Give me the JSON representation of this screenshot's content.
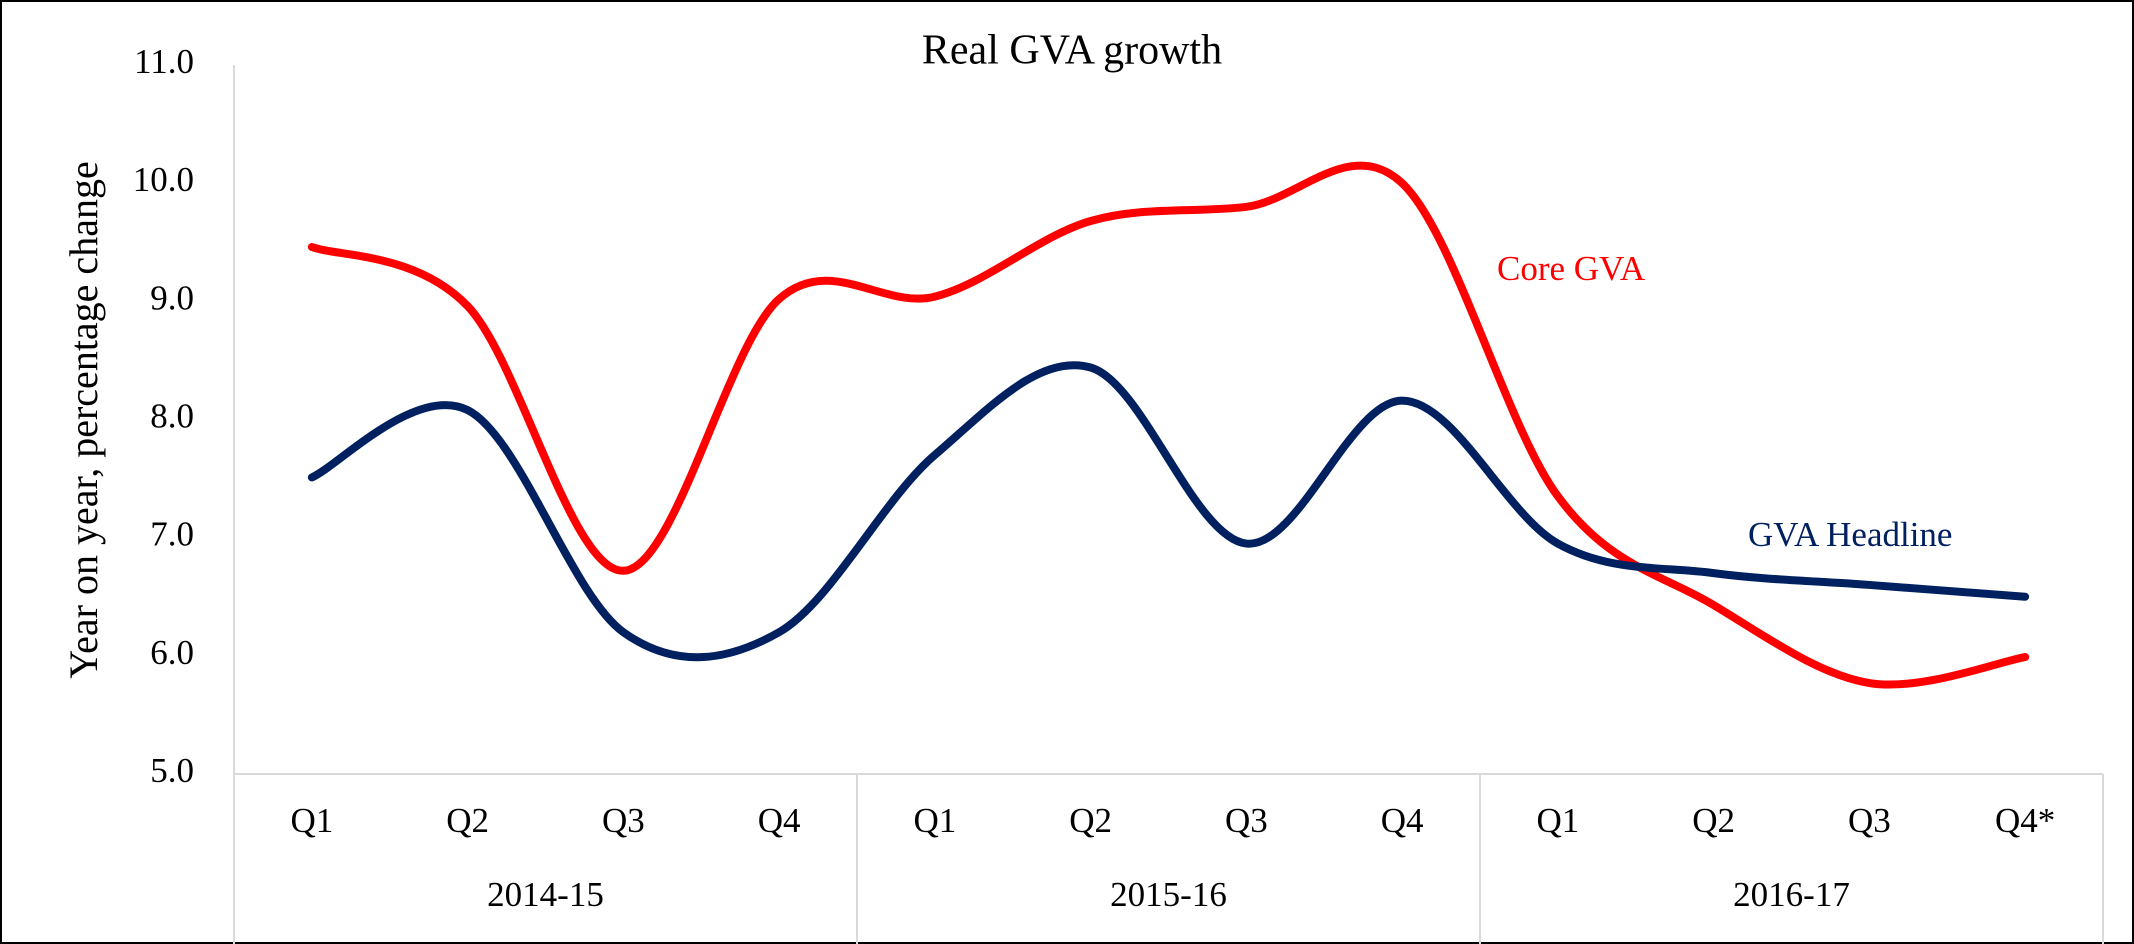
{
  "chart_data": {
    "type": "line",
    "title": "Real GVA growth",
    "y_label": "Year on year, percentage change",
    "categories": [
      "Q1",
      "Q2",
      "Q3",
      "Q4",
      "Q1",
      "Q2",
      "Q3",
      "Q4",
      "Q1",
      "Q2",
      "Q3",
      "Q4*"
    ],
    "groups": [
      "2014-15",
      "2015-16",
      "2016-17"
    ],
    "series": [
      {
        "name": "Core GVA",
        "color": "#ff0000",
        "values": [
          9.46,
          8.96,
          6.72,
          9.02,
          9.04,
          9.68,
          9.8,
          10.0,
          7.35,
          6.43,
          5.77,
          5.99
        ]
      },
      {
        "name": "GVA Headline",
        "color": "#002060",
        "values": [
          7.51,
          8.08,
          6.2,
          6.2,
          7.7,
          8.44,
          6.95,
          8.16,
          6.95,
          6.7,
          6.6,
          6.5
        ]
      }
    ],
    "ylim": [
      5,
      11
    ],
    "yticks": [
      {
        "value": 5,
        "label": "5.0"
      },
      {
        "value": 6,
        "label": "6.0"
      },
      {
        "value": 7,
        "label": "7.0"
      },
      {
        "value": 8,
        "label": "8.0"
      },
      {
        "value": 9,
        "label": "9.0"
      },
      {
        "value": 10,
        "label": "10.0"
      },
      {
        "value": 11,
        "label": "11.0"
      }
    ]
  }
}
